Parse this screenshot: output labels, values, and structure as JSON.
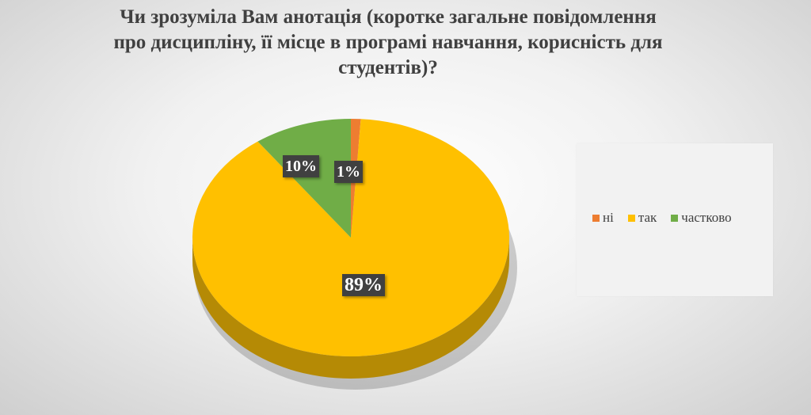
{
  "title_lines": [
    "Чи зрозуміла Вам анотація (коротке загальне повідомлення",
    "про дисципліну, її місце в програмі навчання, корисність для",
    "студентів)?"
  ],
  "chart_data": {
    "type": "pie",
    "title": "Чи зрозуміла Вам анотація (коротке загальне повідомлення про дисципліну, її місце в програмі навчання, корисність для студентів)?",
    "categories": [
      "ні",
      "так",
      "частково"
    ],
    "values": [
      1,
      89,
      10
    ],
    "labels": [
      "1%",
      "89%",
      "10%"
    ],
    "colors": [
      "#ed7d31",
      "#ffc000",
      "#70ad47"
    ],
    "side_colors": [
      "#b85d22",
      "#b58a05",
      "#4f7d33"
    ],
    "legend_position": "right",
    "style": "3d"
  }
}
